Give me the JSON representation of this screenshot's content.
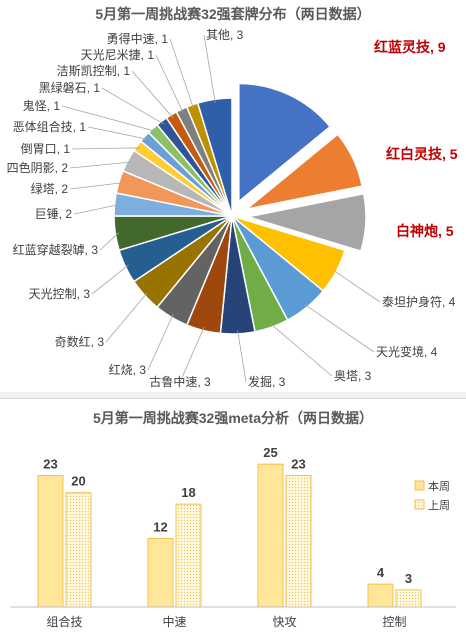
{
  "chart_data": [
    {
      "type": "pie",
      "title": "5月第一周挑战赛32强套牌分布（两日数据）",
      "slices": [
        {
          "label": "红蓝灵技",
          "value": 9,
          "text": "红蓝灵技, 9",
          "color": "#4472c4",
          "exploded": true,
          "highlight": true
        },
        {
          "label": "红白灵技",
          "value": 5,
          "text": "红白灵技, 5",
          "color": "#ed7d31",
          "exploded": true,
          "highlight": true
        },
        {
          "label": "白神炮",
          "value": 5,
          "text": "白神炮, 5",
          "color": "#a5a5a5",
          "exploded": true,
          "highlight": true
        },
        {
          "label": "泰坦护身符",
          "value": 4,
          "text": "泰坦护身符, 4",
          "color": "#ffc000"
        },
        {
          "label": "天光变境",
          "value": 4,
          "text": "天光变境, 4",
          "color": "#5b9bd5"
        },
        {
          "label": "奥塔",
          "value": 3,
          "text": "奥塔, 3",
          "color": "#70ad47"
        },
        {
          "label": "发掘",
          "value": 3,
          "text": "发掘, 3",
          "color": "#264478"
        },
        {
          "label": "古鲁中速",
          "value": 3,
          "text": "古鲁中速, 3",
          "color": "#9e480e"
        },
        {
          "label": "红烧",
          "value": 3,
          "text": "红烧, 3",
          "color": "#636363"
        },
        {
          "label": "奇数红",
          "value": 3,
          "text": "奇数红, 3",
          "color": "#997300"
        },
        {
          "label": "天光控制",
          "value": 3,
          "text": "天光控制, 3",
          "color": "#255e91"
        },
        {
          "label": "红蓝穿越裂罅",
          "value": 3,
          "text": "红蓝穿越裂罅, 3",
          "color": "#43682b"
        },
        {
          "label": "巨锤",
          "value": 2,
          "text": "巨锤, 2",
          "color": "#7cafdd"
        },
        {
          "label": "绿塔",
          "value": 2,
          "text": "绿塔, 2",
          "color": "#f1975a"
        },
        {
          "label": "四色阴影",
          "value": 2,
          "text": "四色阴影, 2",
          "color": "#b7b7b7"
        },
        {
          "label": "倒胃口",
          "value": 1,
          "text": "倒胃口, 1",
          "color": "#ffcd33"
        },
        {
          "label": "恶体组合技",
          "value": 1,
          "text": "恶体组合技, 1",
          "color": "#6a9fd6"
        },
        {
          "label": "鬼怪",
          "value": 1,
          "text": "鬼怪, 1",
          "color": "#8cc168"
        },
        {
          "label": "黑绿磐石",
          "value": 1,
          "text": "黑绿磐石, 1",
          "color": "#2f5597"
        },
        {
          "label": "洁斯凯控制",
          "value": 1,
          "text": "洁斯凯控制, 1",
          "color": "#c55a11"
        },
        {
          "label": "天光尼米捷",
          "value": 1,
          "text": "天光尼米捷, 1",
          "color": "#7f7f7f"
        },
        {
          "label": "勇得中速",
          "value": 1,
          "text": "勇得中速, 1",
          "color": "#bf9000"
        },
        {
          "label": "其他",
          "value": 3,
          "text": "其他, 3",
          "color": "#2e5fa8"
        }
      ]
    },
    {
      "type": "bar",
      "title": "5月第一周挑战赛32强meta分析（两日数据）",
      "categories": [
        "组合技",
        "中速",
        "快攻",
        "控制"
      ],
      "ylim": [
        0,
        28
      ],
      "legend_position": "right",
      "series": [
        {
          "name": "本周",
          "values": [
            23,
            12,
            25,
            4
          ],
          "fill": "#ffe699",
          "stroke": "#f2c14e",
          "pattern": "solid"
        },
        {
          "name": "上周",
          "values": [
            20,
            18,
            23,
            3
          ],
          "fill": "#fff6d5",
          "stroke": "#f2c14e",
          "pattern": "dotted"
        }
      ]
    }
  ],
  "colors": {
    "highlight_text": "#c00000",
    "leader_line": "#a6a6a6",
    "title_text": "#595959",
    "label_text": "#404040",
    "axis_line": "#bfbfbf"
  }
}
